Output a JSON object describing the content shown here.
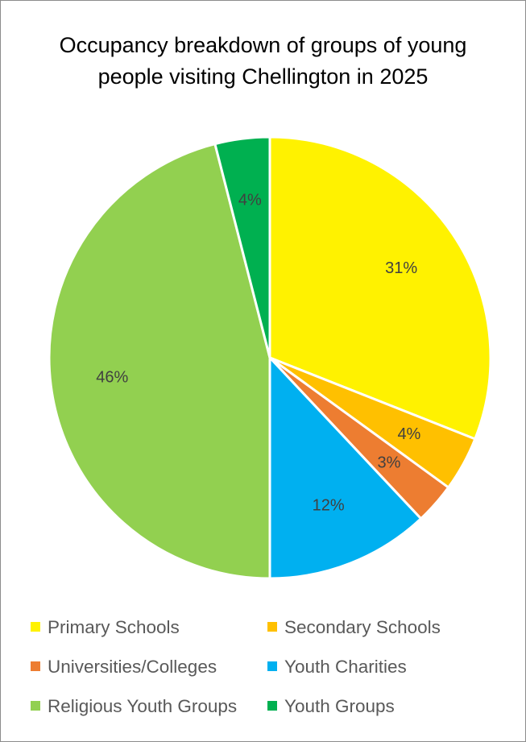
{
  "chart_data": {
    "type": "pie",
    "title_lines": [
      "Occupancy breakdown of groups of young",
      "people visiting Chellington in 2025"
    ],
    "slices": [
      {
        "name": "Primary Schools",
        "value": 31,
        "label": "31%",
        "color": "#FFF200"
      },
      {
        "name": "Secondary Schools",
        "value": 4,
        "label": "4%",
        "color": "#FFC000"
      },
      {
        "name": "Universities/Colleges",
        "value": 3,
        "label": "3%",
        "color": "#ED7D31"
      },
      {
        "name": "Youth Charities",
        "value": 12,
        "label": "12%",
        "color": "#00B0F0"
      },
      {
        "name": "Religious Youth Groups",
        "value": 46,
        "label": "46%",
        "color": "#92D050"
      },
      {
        "name": "Youth Groups",
        "value": 4,
        "label": "4%",
        "color": "#00B050"
      }
    ],
    "start_angle": "12 o'clock",
    "direction": "clockwise",
    "legend_position": "bottom"
  }
}
